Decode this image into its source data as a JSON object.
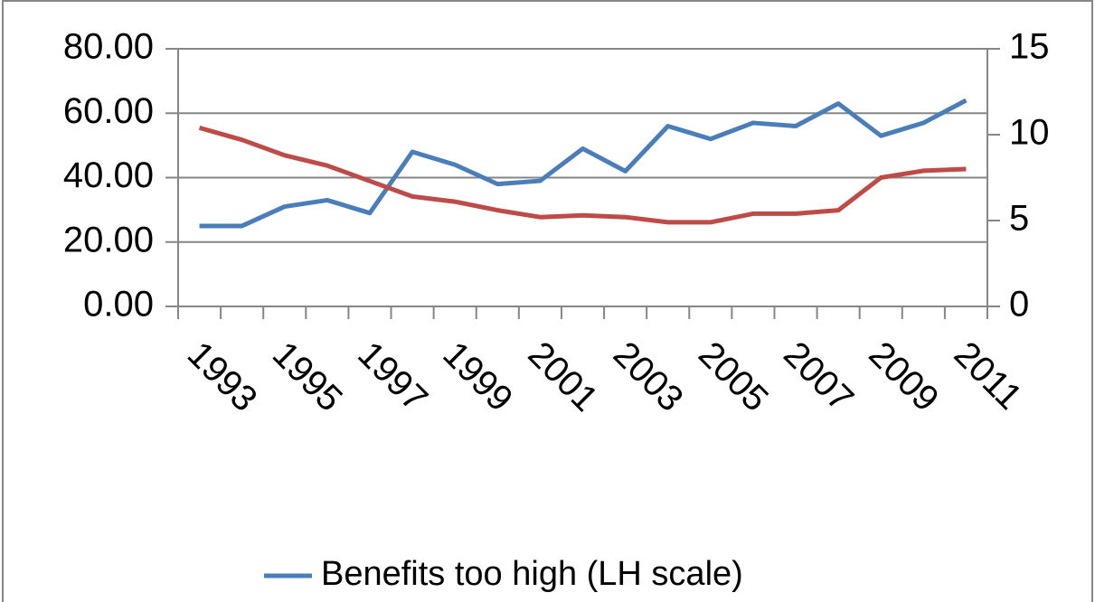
{
  "chart_data": {
    "type": "line",
    "categories": [
      "1993",
      null,
      "1995",
      null,
      "1997",
      null,
      "1999",
      null,
      "2001",
      null,
      "2003",
      null,
      "2005",
      null,
      "2007",
      null,
      "2009",
      null,
      "2011"
    ],
    "series": [
      {
        "name": "Benefits too high (LH scale)",
        "color": "#4a7ebb",
        "values": [
          25,
          25,
          31,
          33,
          29,
          48,
          44,
          38,
          39,
          49,
          42,
          56,
          52,
          57,
          56,
          63,
          53,
          57,
          64
        ]
      },
      {
        "color": "#be4b48",
        "axis": "y2",
        "values": [
          10.4,
          9.7,
          8.8,
          8.2,
          7.3,
          6.4,
          6.1,
          5.6,
          5.2,
          5.3,
          5.2,
          4.9,
          4.9,
          5.4,
          5.4,
          5.6,
          7.5,
          7.9,
          8.0
        ]
      }
    ],
    "ylim": [
      0,
      80
    ],
    "yticks": [
      {
        "value": 0,
        "label": "0.00"
      },
      {
        "value": 20,
        "label": "20.00"
      },
      {
        "value": 40,
        "label": "40.00"
      },
      {
        "value": 60,
        "label": "60.00"
      },
      {
        "value": 80,
        "label": "80.00"
      }
    ],
    "y2lim": [
      0,
      15
    ],
    "y2ticks": [
      0,
      5,
      10,
      15
    ],
    "grid": true,
    "legend": "bottom"
  }
}
